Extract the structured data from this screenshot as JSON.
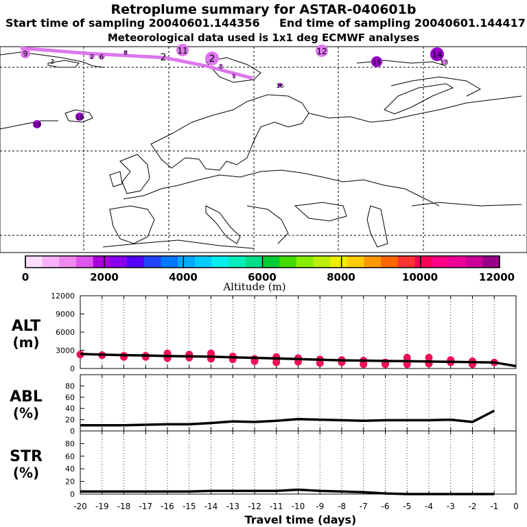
{
  "header": {
    "title": "Retroplume summary for ASTAR-040601b",
    "start_label": "Start time of sampling 20040601.144356",
    "end_label": "End time of sampling 20040601.144417",
    "met_label": "Meteorological data used is 1x1 deg ECMWF analyses"
  },
  "map": {
    "plume_color": "#dd77ee",
    "clusters": [
      {
        "label": "9",
        "color": "#dd77ee"
      },
      {
        "label": "3",
        "color": "#dd77ee"
      },
      {
        "label": "2",
        "color": "#dd77ee"
      },
      {
        "label": "6",
        "color": "#dd77ee"
      },
      {
        "label": "8",
        "color": "#dd77ee"
      },
      {
        "label": "2",
        "color": "#dd77ee"
      },
      {
        "label": "11",
        "color": "#dd77ee"
      },
      {
        "label": "2",
        "color": "#dd77ee"
      },
      {
        "label": "1",
        "color": "#dd77ee"
      },
      {
        "label": "1",
        "color": "#dd77ee"
      },
      {
        "label": "12",
        "color": "#dd77ee"
      },
      {
        "label": "15",
        "color": "#9900cc"
      },
      {
        "label": "14",
        "color": "#9900cc"
      },
      {
        "label": "13",
        "color": "#dd77ee"
      },
      {
        "label": "16",
        "color": "#9900cc"
      },
      {
        "label": "19",
        "color": "#9900cc"
      },
      {
        "label": "18",
        "color": "#9900cc"
      }
    ]
  },
  "colorbar": {
    "label": "Altitude (m)",
    "tick_labels": [
      "0",
      "2000",
      "4000",
      "6000",
      "8000",
      "10000",
      "12000"
    ],
    "colors": [
      "#ffddff",
      "#f7b3f7",
      "#ee88ee",
      "#dd55ee",
      "#aa00dd",
      "#8800ee",
      "#5500ff",
      "#2244ff",
      "#0077ff",
      "#00aaff",
      "#00ccff",
      "#00eeee",
      "#00eebb",
      "#00dd88",
      "#00cc33",
      "#44dd00",
      "#88ee00",
      "#bbee00",
      "#eeee00",
      "#ffcc00",
      "#ff9900",
      "#ff6600",
      "#ff3333",
      "#ff0055",
      "#ff0088",
      "#ee0099",
      "#cc0099",
      "#990088"
    ]
  },
  "chart_data": [
    {
      "type": "line",
      "name": "ALT",
      "ylabel": "ALT\n(m)",
      "ylabel_line1": "ALT",
      "ylabel_line2": "(m)",
      "ylim": [
        0,
        12000
      ],
      "yticks": [
        0,
        3000,
        6000,
        9000,
        12000
      ],
      "ytick_labels": [
        "0",
        "3000",
        "6000",
        "9000",
        "12000"
      ],
      "x": [
        -20,
        -19,
        -18,
        -17,
        -16,
        -15,
        -14,
        -13,
        -12,
        -11,
        -10,
        -9,
        -8,
        -7,
        -6,
        -5,
        -4,
        -3,
        -2,
        -1,
        0
      ],
      "values": [
        2400,
        2300,
        2200,
        2150,
        2050,
        2000,
        1950,
        1850,
        1750,
        1650,
        1550,
        1450,
        1350,
        1300,
        1250,
        1200,
        1150,
        1100,
        1050,
        1000,
        400
      ],
      "scatter": [
        {
          "x": -20,
          "y": 2300
        },
        {
          "x": -19,
          "y": 2200
        },
        {
          "x": -18,
          "y": 1900
        },
        {
          "x": -18,
          "y": 2100
        },
        {
          "x": -17,
          "y": 1900
        },
        {
          "x": -17,
          "y": 2100
        },
        {
          "x": -16,
          "y": 1700
        },
        {
          "x": -16,
          "y": 2100
        },
        {
          "x": -16,
          "y": 2500
        },
        {
          "x": -15,
          "y": 1800
        },
        {
          "x": -15,
          "y": 2300
        },
        {
          "x": -14,
          "y": 1600
        },
        {
          "x": -14,
          "y": 2100
        },
        {
          "x": -14,
          "y": 2500
        },
        {
          "x": -13,
          "y": 1500
        },
        {
          "x": -13,
          "y": 2000
        },
        {
          "x": -12,
          "y": 1200
        },
        {
          "x": -12,
          "y": 1600
        },
        {
          "x": -11,
          "y": 1000
        },
        {
          "x": -11,
          "y": 1500
        },
        {
          "x": -11,
          "y": 1900
        },
        {
          "x": -10,
          "y": 1100
        },
        {
          "x": -10,
          "y": 1700
        },
        {
          "x": -9,
          "y": 900
        },
        {
          "x": -9,
          "y": 1500
        },
        {
          "x": -8,
          "y": 1000
        },
        {
          "x": -8,
          "y": 1400
        },
        {
          "x": -7,
          "y": 700
        },
        {
          "x": -7,
          "y": 1300
        },
        {
          "x": -6,
          "y": 700
        },
        {
          "x": -6,
          "y": 1000
        },
        {
          "x": -5,
          "y": 700
        },
        {
          "x": -5,
          "y": 1200
        },
        {
          "x": -5,
          "y": 1800
        },
        {
          "x": -4,
          "y": 800
        },
        {
          "x": -4,
          "y": 1800
        },
        {
          "x": -3,
          "y": 1000
        },
        {
          "x": -3,
          "y": 1400
        },
        {
          "x": -2,
          "y": 700
        },
        {
          "x": -2,
          "y": 1200
        },
        {
          "x": -1,
          "y": 1000
        }
      ],
      "marker_color": "#ee1155"
    },
    {
      "type": "line",
      "name": "ABL",
      "ylabel_line1": "ABL",
      "ylabel_line2": "(%)",
      "ylim": [
        0,
        100
      ],
      "yticks": [
        0,
        20,
        40,
        60,
        80
      ],
      "ytick_labels": [
        "0",
        "20",
        "40",
        "60",
        "80"
      ],
      "x": [
        -20,
        -19,
        -18,
        -17,
        -16,
        -15,
        -14,
        -13,
        -12,
        -11,
        -10,
        -9,
        -8,
        -7,
        -6,
        -5,
        -4,
        -3,
        -2,
        -1
      ],
      "values": [
        10,
        10,
        10,
        11,
        12,
        12,
        14,
        17,
        16,
        18,
        21,
        20,
        19,
        18,
        19,
        19,
        19,
        20,
        16,
        36
      ]
    },
    {
      "type": "line",
      "name": "STR",
      "ylabel_line1": "STR",
      "ylabel_line2": "(%)",
      "ylim": [
        0,
        100
      ],
      "yticks": [
        0,
        20,
        40,
        60,
        80
      ],
      "ytick_labels": [
        "0",
        "20",
        "40",
        "60",
        "80"
      ],
      "x": [
        -20,
        -19,
        -18,
        -17,
        -16,
        -15,
        -14,
        -13,
        -12,
        -11,
        -10,
        -9,
        -8,
        -7,
        -6,
        -5,
        -4,
        -3,
        -2,
        -1
      ],
      "values": [
        4,
        4,
        4,
        4,
        4,
        4,
        5,
        5,
        5,
        5,
        7,
        5,
        4,
        3,
        1,
        0,
        0,
        0,
        0,
        0
      ],
      "xlabel": "Travel time (days)",
      "xtick_labels": [
        "-20",
        "-19",
        "-18",
        "-17",
        "-16",
        "-15",
        "-14",
        "-13",
        "-12",
        "-11",
        "-10",
        "-9",
        "-8",
        "-7",
        "-6",
        "-5",
        "-4",
        "-3",
        "-2",
        "-1",
        "0"
      ]
    }
  ]
}
